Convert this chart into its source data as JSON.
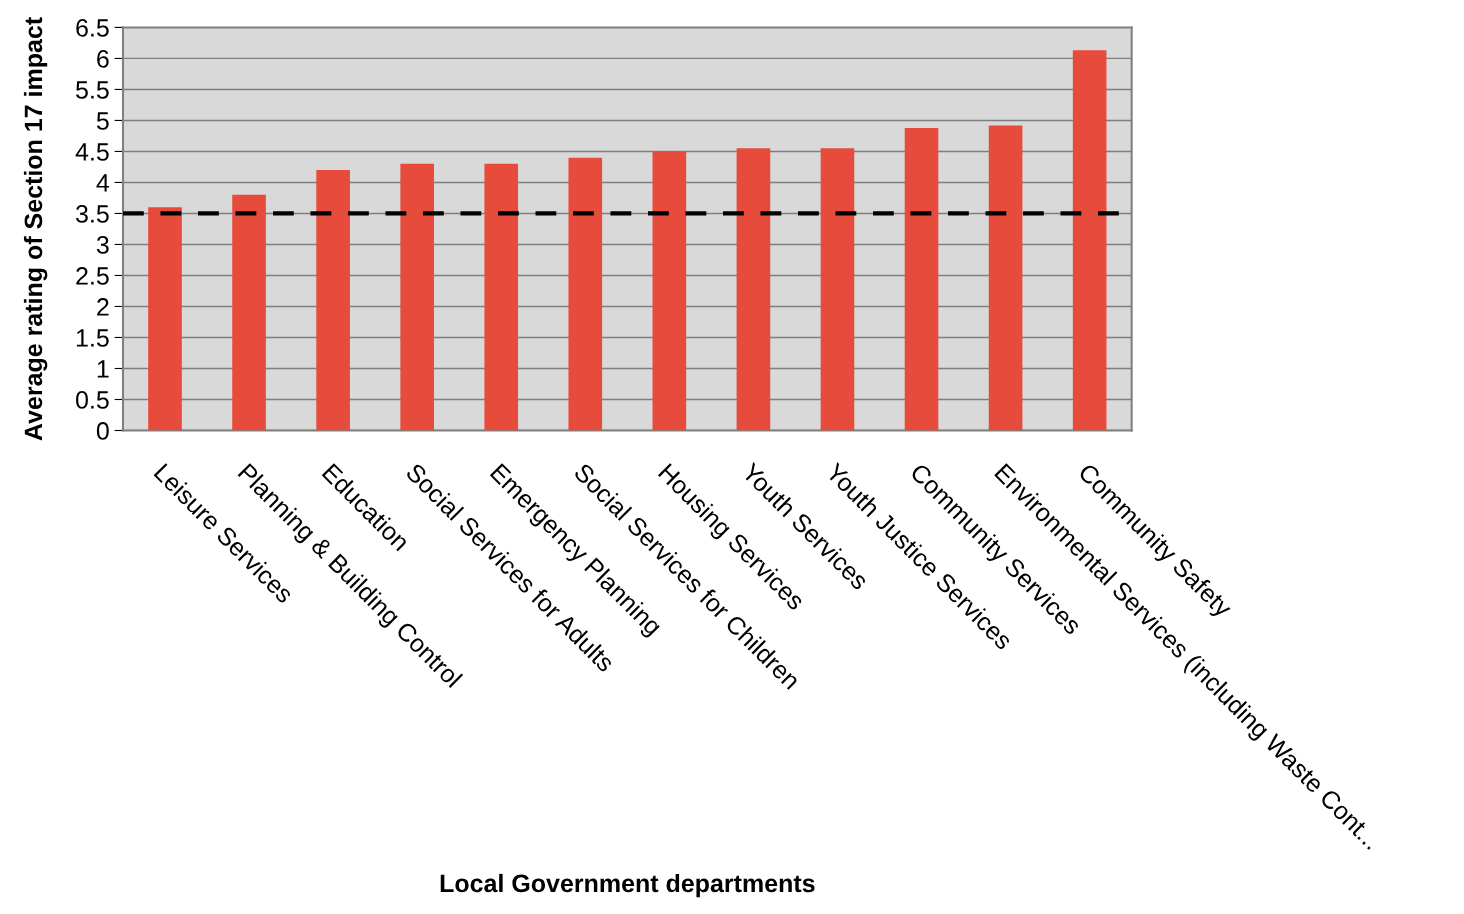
{
  "chart_data": {
    "type": "bar",
    "xlabel": "Local Government departments",
    "ylabel": "Average rating of Section 17 impact",
    "categories": [
      "Leisure Services",
      "Planning & Building Control",
      "Education",
      "Social Services for Adults",
      "Emergency Planning",
      "Social Services for Children",
      "Housing Services",
      "Youth Services",
      "Youth Justice Services",
      "Community Services",
      "Environmental Services (including Waste Cont...",
      "Community Safety"
    ],
    "values": [
      3.6,
      3.8,
      4.2,
      4.3,
      4.3,
      4.4,
      4.5,
      4.55,
      4.55,
      4.88,
      4.92,
      6.13
    ],
    "color": "#e64b3b",
    "ylim": [
      0,
      6.5
    ],
    "yticks": [
      0,
      0.5,
      1,
      1.5,
      2,
      2.5,
      3,
      3.5,
      4,
      4.5,
      5,
      5.5,
      6,
      6.5
    ],
    "grid": "y",
    "legend": false,
    "ref_lines": [
      {
        "axis": "y",
        "value": 3.5,
        "color": "#000000",
        "line_style": "dashed"
      }
    ]
  }
}
